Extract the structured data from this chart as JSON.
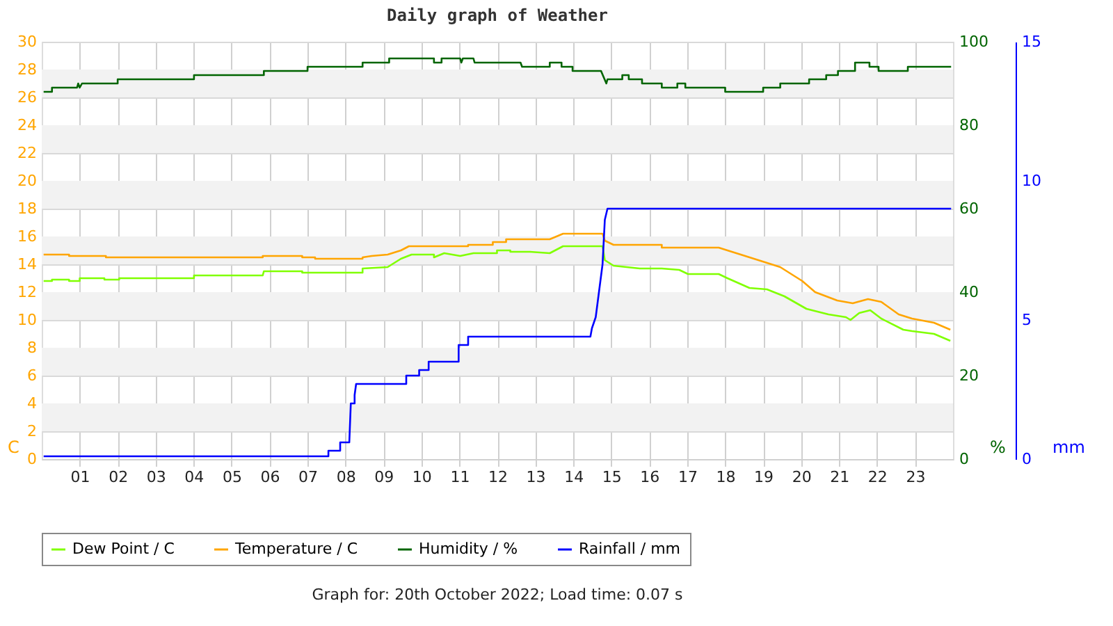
{
  "chart_data": {
    "type": "line",
    "title": "Daily graph of Weather",
    "ylabel": "C",
    "y2label": "%",
    "y3label": "mm",
    "annotations": [
      "Graph for: 20th October 2022; Load time: 0.07 s"
    ],
    "xlim": [
      0,
      24
    ],
    "xticks": [
      {
        "value": 1,
        "label": "01"
      },
      {
        "value": 2,
        "label": "02"
      },
      {
        "value": 3,
        "label": "03"
      },
      {
        "value": 4,
        "label": "04"
      },
      {
        "value": 5,
        "label": "05"
      },
      {
        "value": 6,
        "label": "06"
      },
      {
        "value": 7,
        "label": "07"
      },
      {
        "value": 8,
        "label": "08"
      },
      {
        "value": 9,
        "label": "09"
      },
      {
        "value": 10,
        "label": "10"
      },
      {
        "value": 11,
        "label": "11"
      },
      {
        "value": 12,
        "label": "12"
      },
      {
        "value": 13,
        "label": "13"
      },
      {
        "value": 14,
        "label": "14"
      },
      {
        "value": 15,
        "label": "15"
      },
      {
        "value": 16,
        "label": "16"
      },
      {
        "value": 17,
        "label": "17"
      },
      {
        "value": 18,
        "label": "18"
      },
      {
        "value": 19,
        "label": "19"
      },
      {
        "value": 20,
        "label": "20"
      },
      {
        "value": 21,
        "label": "21"
      },
      {
        "value": 22,
        "label": "22"
      },
      {
        "value": 23,
        "label": "23"
      }
    ],
    "ylim": [
      0,
      30
    ],
    "yticks": [
      0,
      2,
      4,
      6,
      8,
      10,
      12,
      14,
      16,
      18,
      20,
      22,
      24,
      26,
      28,
      30
    ],
    "y2lim": [
      0,
      100
    ],
    "y2ticks": [
      0,
      20,
      40,
      60,
      80,
      100
    ],
    "y3lim": [
      0,
      15
    ],
    "y3ticks": [
      0,
      5,
      10,
      15
    ],
    "grid": true,
    "legend": "bottom",
    "marker": "none",
    "line_style": "solid",
    "bands": [
      {
        "axis": "y",
        "from": 2,
        "to": 4,
        "color": "#f2f2f2"
      },
      {
        "axis": "y",
        "from": 6,
        "to": 8,
        "color": "#f2f2f2"
      },
      {
        "axis": "y",
        "from": 10,
        "to": 12,
        "color": "#f2f2f2"
      },
      {
        "axis": "y",
        "from": 14,
        "to": 16,
        "color": "#f2f2f2"
      },
      {
        "axis": "y",
        "from": 18,
        "to": 20,
        "color": "#f2f2f2"
      },
      {
        "axis": "y",
        "from": 22,
        "to": 24,
        "color": "#f2f2f2"
      },
      {
        "axis": "y",
        "from": 26,
        "to": 28,
        "color": "#f2f2f2"
      }
    ],
    "series": [
      {
        "name": "Dew Point / C",
        "color": "#80ff00",
        "x": [
          0.05,
          0.27,
          0.27,
          0.72,
          0.72,
          1.0,
          1.0,
          1.65,
          1.65,
          2.04,
          2.04,
          4.01,
          4.01,
          5.82,
          5.85,
          6.86,
          6.86,
          8.45,
          8.45,
          9.11,
          9.46,
          9.74,
          10.33,
          10.33,
          10.6,
          11.02,
          11.37,
          11.99,
          11.99,
          12.34,
          12.34,
          12.86,
          13.38,
          13.73,
          14.77,
          14.83,
          15.06,
          15.75,
          16.33,
          16.79,
          17.02,
          17.83,
          18.06,
          18.64,
          19.1,
          19.56,
          20.14,
          20.72,
          21.18,
          21.3,
          21.53,
          21.82,
          22.11,
          22.69,
          22.92,
          23.5,
          23.93
        ],
        "values": [
          12.8,
          12.8,
          12.9,
          12.9,
          12.8,
          12.8,
          13.0,
          13.0,
          12.9,
          12.9,
          13.0,
          13.0,
          13.2,
          13.2,
          13.5,
          13.5,
          13.4,
          13.4,
          13.7,
          13.8,
          14.4,
          14.7,
          14.7,
          14.5,
          14.8,
          14.6,
          14.8,
          14.8,
          15.0,
          15.0,
          14.9,
          14.9,
          14.8,
          15.3,
          15.3,
          14.3,
          13.9,
          13.7,
          13.7,
          13.6,
          13.3,
          13.3,
          13.0,
          12.3,
          12.2,
          11.7,
          10.8,
          10.4,
          10.2,
          10.0,
          10.5,
          10.7,
          10.1,
          9.3,
          9.2,
          9.0,
          8.5
        ]
      },
      {
        "name": "Temperature / C",
        "color": "#ffa500",
        "x": [
          0.05,
          0.72,
          0.72,
          1.69,
          1.69,
          5.82,
          5.82,
          6.86,
          6.86,
          7.2,
          7.2,
          8.45,
          8.45,
          8.69,
          9.11,
          9.46,
          9.67,
          11.23,
          11.23,
          11.88,
          11.88,
          12.23,
          12.23,
          13.38,
          13.73,
          14.77,
          14.83,
          15.06,
          16.33,
          16.33,
          17.83,
          18.06,
          18.41,
          18.99,
          19.45,
          20.03,
          20.37,
          20.95,
          21.36,
          21.76,
          22.11,
          22.57,
          22.92,
          23.5,
          23.93
        ],
        "values": [
          14.7,
          14.7,
          14.6,
          14.6,
          14.5,
          14.5,
          14.6,
          14.6,
          14.5,
          14.5,
          14.4,
          14.4,
          14.5,
          14.6,
          14.7,
          15.0,
          15.3,
          15.3,
          15.4,
          15.4,
          15.6,
          15.6,
          15.8,
          15.8,
          16.2,
          16.2,
          15.7,
          15.4,
          15.4,
          15.2,
          15.2,
          15.0,
          14.7,
          14.2,
          13.8,
          12.8,
          12.0,
          11.4,
          11.2,
          11.5,
          11.3,
          10.4,
          10.1,
          9.8,
          9.3
        ]
      },
      {
        "name": "Humidity / %",
        "color": "#006400",
        "axis": "y2",
        "x": [
          0.05,
          0.27,
          0.27,
          0.93,
          0.96,
          1.0,
          1.06,
          2.0,
          2.0,
          4.01,
          4.01,
          5.85,
          5.85,
          7.0,
          7.0,
          8.45,
          8.45,
          9.15,
          9.15,
          10.33,
          10.33,
          10.53,
          10.53,
          11.02,
          11.05,
          11.09,
          11.37,
          11.4,
          12.61,
          12.65,
          13.38,
          13.38,
          13.69,
          13.69,
          13.98,
          13.98,
          14.73,
          14.87,
          14.9,
          15.29,
          15.29,
          15.46,
          15.46,
          15.81,
          15.81,
          16.33,
          16.33,
          16.74,
          16.74,
          16.95,
          16.95,
          18.0,
          18.0,
          19.0,
          19.0,
          19.45,
          19.45,
          20.21,
          20.21,
          20.66,
          20.66,
          20.97,
          20.97,
          21.42,
          21.42,
          21.8,
          21.8,
          22.04,
          22.04,
          22.81,
          22.81,
          23.95
        ],
        "values": [
          88,
          88,
          89,
          89,
          90,
          89,
          90,
          90,
          91,
          91,
          92,
          92,
          93,
          93,
          94,
          94,
          95,
          95,
          96,
          96,
          95,
          95,
          96,
          96,
          95,
          96,
          96,
          95,
          95,
          94,
          94,
          95,
          95,
          94,
          94,
          93,
          93,
          90,
          91,
          91,
          92,
          92,
          91,
          91,
          90,
          90,
          89,
          89,
          90,
          90,
          89,
          89,
          88,
          88,
          89,
          89,
          90,
          90,
          91,
          91,
          92,
          92,
          93,
          93,
          95,
          95,
          94,
          94,
          93,
          93,
          94,
          94
        ]
      },
      {
        "name": "Rainfall / mm",
        "color": "#0000ff",
        "axis": "y3",
        "x": [
          0.05,
          7.55,
          7.55,
          7.86,
          7.86,
          8.1,
          8.14,
          8.24,
          8.24,
          8.28,
          9.6,
          9.6,
          9.94,
          9.94,
          10.19,
          10.19,
          10.98,
          10.98,
          11.23,
          11.23,
          14.45,
          14.49,
          14.59,
          14.77,
          14.83,
          14.9,
          23.95
        ],
        "values": [
          0.1,
          0.1,
          0.3,
          0.3,
          0.6,
          0.6,
          2.0,
          2.0,
          2.3,
          2.7,
          2.7,
          3.0,
          3.0,
          3.2,
          3.2,
          3.5,
          3.5,
          4.1,
          4.1,
          4.4,
          4.4,
          4.7,
          5.1,
          7.0,
          8.6,
          9.0,
          9.0
        ]
      }
    ]
  }
}
